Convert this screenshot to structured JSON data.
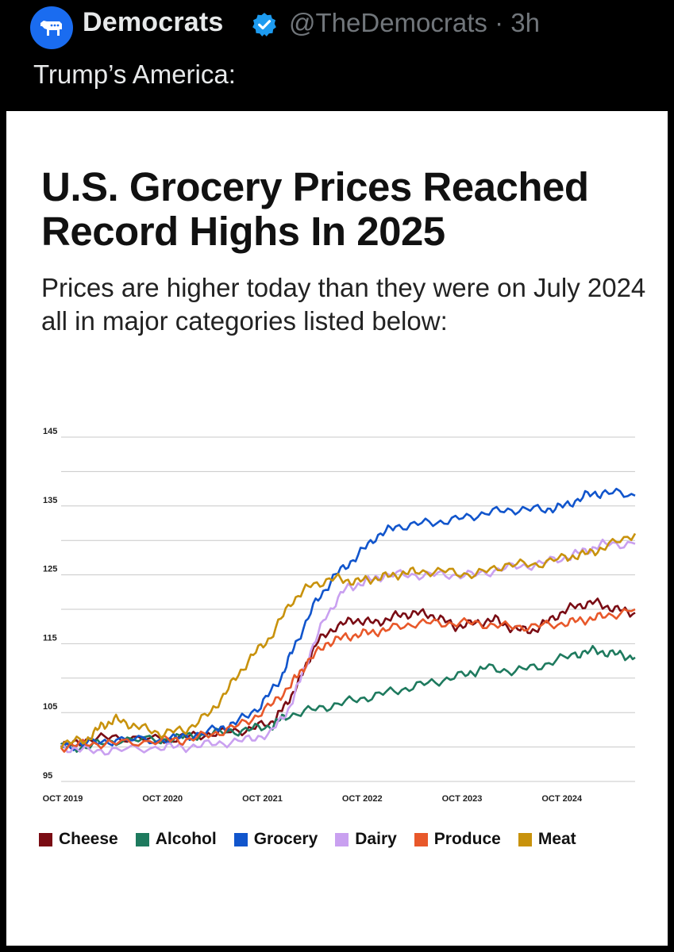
{
  "tweet": {
    "author_name": "Democrats",
    "handle": "@TheDemocrats · 3h",
    "text": "Trump’s America:"
  },
  "card": {
    "headline": "U.S. Grocery Prices Reached Record Highs In 2025",
    "subhead": "Prices are higher today than they were on July 2024 all in major categories listed below:"
  },
  "colors": {
    "brand": "#1a6cf0",
    "verified": "#1d9bf0"
  },
  "chart_data": {
    "type": "line",
    "title": "",
    "xlabel": "",
    "ylabel": "",
    "ylim": [
      95,
      145
    ],
    "yticks": [
      95,
      105,
      115,
      125,
      135,
      145
    ],
    "xlim": [
      2019.75,
      2025.5
    ],
    "xticks": [
      {
        "x": 2019.75,
        "label": "OCT 2019"
      },
      {
        "x": 2020.75,
        "label": "OCT 2020"
      },
      {
        "x": 2021.75,
        "label": "OCT 2021"
      },
      {
        "x": 2022.75,
        "label": "OCT 2022"
      },
      {
        "x": 2023.75,
        "label": "OCT 2023"
      },
      {
        "x": 2024.75,
        "label": "OCT 2024"
      }
    ],
    "grid": true,
    "series": [
      {
        "name": "Cheese",
        "color": "#7a0c14",
        "points": [
          [
            2019.75,
            100
          ],
          [
            2020.0,
            101
          ],
          [
            2020.3,
            101.5
          ],
          [
            2020.75,
            101
          ],
          [
            2021.0,
            101.5
          ],
          [
            2021.3,
            102
          ],
          [
            2021.6,
            102.5
          ],
          [
            2021.85,
            103.5
          ],
          [
            2022.0,
            106
          ],
          [
            2022.15,
            110
          ],
          [
            2022.3,
            115
          ],
          [
            2022.5,
            117.5
          ],
          [
            2022.7,
            118.5
          ],
          [
            2022.9,
            118
          ],
          [
            2023.1,
            119
          ],
          [
            2023.3,
            119.5
          ],
          [
            2023.5,
            119
          ],
          [
            2023.7,
            117.5
          ],
          [
            2023.9,
            118
          ],
          [
            2024.1,
            118.5
          ],
          [
            2024.3,
            117
          ],
          [
            2024.5,
            117
          ],
          [
            2024.7,
            119
          ],
          [
            2024.9,
            120.5
          ],
          [
            2025.1,
            121
          ],
          [
            2025.3,
            120
          ],
          [
            2025.5,
            119.5
          ]
        ]
      },
      {
        "name": "Alcohol",
        "color": "#1e7a5e",
        "points": [
          [
            2019.75,
            100
          ],
          [
            2020.0,
            100
          ],
          [
            2020.3,
            101
          ],
          [
            2020.75,
            101
          ],
          [
            2021.0,
            101.5
          ],
          [
            2021.3,
            102
          ],
          [
            2021.6,
            102.5
          ],
          [
            2021.85,
            103
          ],
          [
            2022.0,
            104.5
          ],
          [
            2022.3,
            105.5
          ],
          [
            2022.6,
            106.5
          ],
          [
            2022.9,
            107.5
          ],
          [
            2023.2,
            108.5
          ],
          [
            2023.5,
            109.5
          ],
          [
            2023.8,
            110.5
          ],
          [
            2024.0,
            111.5
          ],
          [
            2024.3,
            111
          ],
          [
            2024.6,
            112
          ],
          [
            2024.9,
            113.5
          ],
          [
            2025.1,
            114
          ],
          [
            2025.3,
            113.5
          ],
          [
            2025.5,
            113
          ]
        ]
      },
      {
        "name": "Grocery",
        "color": "#1155cc",
        "points": [
          [
            2019.75,
            100
          ],
          [
            2020.0,
            100.5
          ],
          [
            2020.3,
            101
          ],
          [
            2020.75,
            101
          ],
          [
            2021.0,
            101.5
          ],
          [
            2021.3,
            102.5
          ],
          [
            2021.5,
            103.5
          ],
          [
            2021.75,
            106
          ],
          [
            2021.95,
            110
          ],
          [
            2022.1,
            115
          ],
          [
            2022.3,
            121
          ],
          [
            2022.5,
            125
          ],
          [
            2022.7,
            127.5
          ],
          [
            2022.9,
            130.5
          ],
          [
            2023.1,
            132
          ],
          [
            2023.4,
            132.5
          ],
          [
            2023.7,
            133
          ],
          [
            2024.0,
            134
          ],
          [
            2024.3,
            134.5
          ],
          [
            2024.6,
            134.5
          ],
          [
            2024.8,
            135
          ],
          [
            2025.0,
            136.5
          ],
          [
            2025.2,
            137
          ],
          [
            2025.5,
            136.5
          ]
        ]
      },
      {
        "name": "Dairy",
        "color": "#c9a0f0",
        "points": [
          [
            2019.75,
            100
          ],
          [
            2020.0,
            99.5
          ],
          [
            2020.3,
            99.5
          ],
          [
            2020.75,
            100
          ],
          [
            2021.0,
            100
          ],
          [
            2021.3,
            100.5
          ],
          [
            2021.6,
            101
          ],
          [
            2021.85,
            102
          ],
          [
            2022.05,
            106
          ],
          [
            2022.2,
            112
          ],
          [
            2022.4,
            119
          ],
          [
            2022.6,
            123
          ],
          [
            2022.8,
            124
          ],
          [
            2023.0,
            125
          ],
          [
            2023.3,
            125
          ],
          [
            2023.6,
            125
          ],
          [
            2023.9,
            125
          ],
          [
            2024.2,
            126
          ],
          [
            2024.5,
            126.5
          ],
          [
            2024.8,
            127.5
          ],
          [
            2025.0,
            128.5
          ],
          [
            2025.2,
            129.5
          ],
          [
            2025.5,
            129.5
          ]
        ]
      },
      {
        "name": "Produce",
        "color": "#e8582a",
        "points": [
          [
            2019.75,
            100
          ],
          [
            2020.0,
            100.5
          ],
          [
            2020.3,
            100.5
          ],
          [
            2020.75,
            101
          ],
          [
            2021.0,
            101
          ],
          [
            2021.3,
            102
          ],
          [
            2021.6,
            103.5
          ],
          [
            2021.85,
            106
          ],
          [
            2022.05,
            109
          ],
          [
            2022.2,
            112
          ],
          [
            2022.4,
            115
          ],
          [
            2022.6,
            116
          ],
          [
            2022.8,
            116.5
          ],
          [
            2023.0,
            117
          ],
          [
            2023.3,
            118
          ],
          [
            2023.6,
            118
          ],
          [
            2023.9,
            118
          ],
          [
            2024.2,
            117.5
          ],
          [
            2024.5,
            117.5
          ],
          [
            2024.8,
            118
          ],
          [
            2025.0,
            118.5
          ],
          [
            2025.2,
            119
          ],
          [
            2025.5,
            120
          ]
        ]
      },
      {
        "name": "Meat",
        "color": "#c8920c",
        "points": [
          [
            2019.75,
            100.5
          ],
          [
            2020.0,
            101
          ],
          [
            2020.15,
            103
          ],
          [
            2020.3,
            104
          ],
          [
            2020.5,
            103
          ],
          [
            2020.75,
            102
          ],
          [
            2021.0,
            102.5
          ],
          [
            2021.25,
            105
          ],
          [
            2021.45,
            109
          ],
          [
            2021.65,
            113
          ],
          [
            2021.85,
            116
          ],
          [
            2022.05,
            121
          ],
          [
            2022.25,
            123.5
          ],
          [
            2022.5,
            124.5
          ],
          [
            2022.7,
            124
          ],
          [
            2022.9,
            124.5
          ],
          [
            2023.1,
            125
          ],
          [
            2023.3,
            125.5
          ],
          [
            2023.6,
            125.5
          ],
          [
            2023.9,
            125
          ],
          [
            2024.2,
            126.5
          ],
          [
            2024.5,
            126.5
          ],
          [
            2024.8,
            127.5
          ],
          [
            2025.0,
            128
          ],
          [
            2025.2,
            129
          ],
          [
            2025.5,
            131
          ]
        ]
      }
    ]
  }
}
